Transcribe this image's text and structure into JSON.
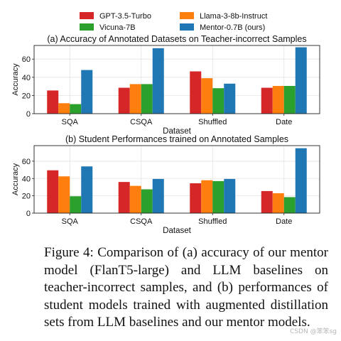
{
  "colors": {
    "GPT-3.5-Turbo": "#d62728",
    "Llama-3-8b-Instruct": "#ff7f0e",
    "Vicuna-7B": "#2ca02c",
    "Mentor-0.7B (ours)": "#1f77b4"
  },
  "legend": [
    "GPT-3.5-Turbo",
    "Llama-3-8b-Instruct",
    "Vicuna-7B",
    "Mentor-0.7B (ours)"
  ],
  "chart_data": [
    {
      "type": "bar",
      "title": "(a) Accuracy of Annotated Datasets on Teacher-incorrect Samples",
      "xlabel": "Dataset",
      "ylabel": "Accuracy",
      "categories": [
        "SQA",
        "CSQA",
        "Shuffled",
        "Date"
      ],
      "yticks": [
        0,
        20,
        40,
        60
      ],
      "ylim": [
        0,
        75
      ],
      "grid": true,
      "series": [
        {
          "name": "GPT-3.5-Turbo",
          "values": [
            25.5,
            28.5,
            46.5,
            28.5
          ]
        },
        {
          "name": "Llama-3-8b-Instruct",
          "values": [
            11.5,
            32.5,
            39,
            30.5
          ]
        },
        {
          "name": "Vicuna-7B",
          "values": [
            10.5,
            32.5,
            28,
            30.5
          ]
        },
        {
          "name": "Mentor-0.7B (ours)",
          "values": [
            48,
            72,
            33,
            73
          ]
        }
      ]
    },
    {
      "type": "bar",
      "title": "(b) Student Performances trained on Annotated Samples",
      "xlabel": "Dataset",
      "ylabel": "Accuracy",
      "categories": [
        "SQA",
        "CSQA",
        "Shuffled",
        "Date"
      ],
      "yticks": [
        0,
        20,
        40,
        60
      ],
      "ylim": [
        0,
        78
      ],
      "grid": true,
      "series": [
        {
          "name": "GPT-3.5-Turbo",
          "values": [
            49.5,
            36,
            34.5,
            25.5
          ]
        },
        {
          "name": "Llama-3-8b-Instruct",
          "values": [
            42.5,
            31.5,
            38,
            23
          ]
        },
        {
          "name": "Vicuna-7B",
          "values": [
            19.5,
            27.5,
            37,
            18.5
          ]
        },
        {
          "name": "Mentor-0.7B (ours)",
          "values": [
            54,
            39.5,
            39.5,
            75
          ]
        }
      ]
    }
  ],
  "caption": "Figure 4: Comparison of (a) accuracy of our mentor model (FlanT5-large) and LLM baselines on teacher-incorrect samples, and (b) performances of student models trained with augmented distillation sets from LLM baselines and our mentor models.",
  "watermark": "CSDN @笨笨sg"
}
